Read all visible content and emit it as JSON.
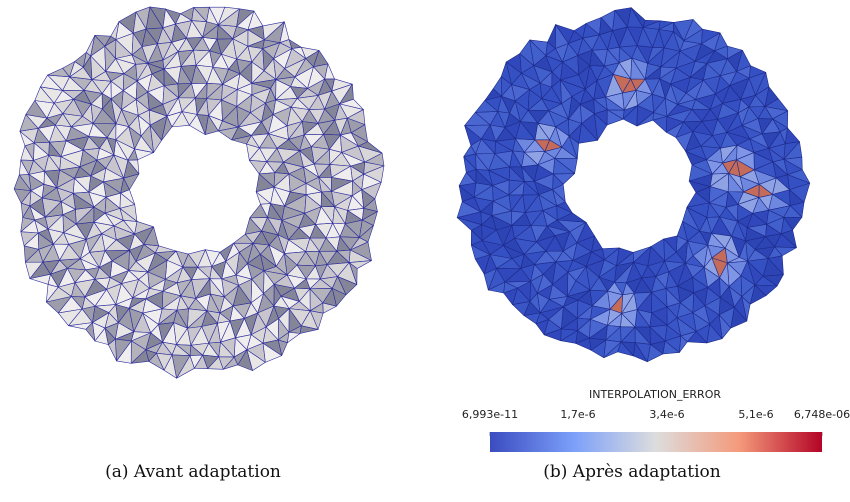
{
  "figure": {
    "left": {
      "caption": "(a) Avant adaptation"
    },
    "right": {
      "caption": "(b) Après adaptation",
      "colorbar": {
        "title": "INTERPOLATION_ERROR",
        "tick_labels": [
          "6,993e-11",
          "1,7e-6",
          "3,4e-6",
          "5,1e-6",
          "6,748e-06"
        ]
      }
    }
  }
}
